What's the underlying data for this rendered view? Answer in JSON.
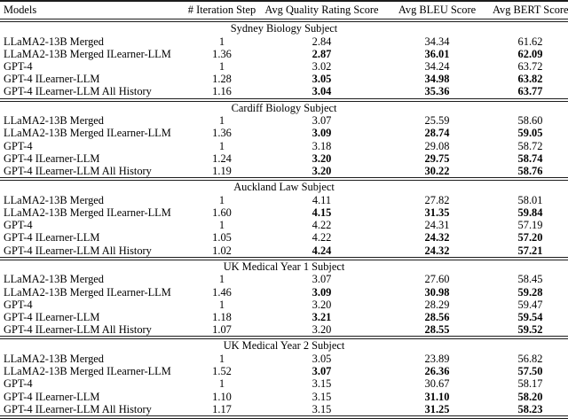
{
  "table": {
    "columns": [
      "Models",
      "# Iteration Step",
      "Avg Quality Rating Score",
      "Avg BLEU Score",
      "Avg BERT Score"
    ],
    "text_color": "#000000",
    "rule_color": "#1c1c1c",
    "sections": [
      {
        "title": "Sydney Biology Subject",
        "rows": [
          {
            "model": "LLaMA2-13B Merged",
            "iteration": "1",
            "quality": "2.84",
            "bleu": "34.34",
            "bert": "61.62",
            "quality_bold": false,
            "bleu_bold": false,
            "bert_bold": false
          },
          {
            "model": "LLaMA2-13B Merged ILearner-LLM",
            "iteration": "1.36",
            "quality": "2.87",
            "bleu": "36.01",
            "bert": "62.09",
            "quality_bold": true,
            "bleu_bold": true,
            "bert_bold": true
          },
          {
            "model": "GPT-4",
            "iteration": "1",
            "quality": "3.02",
            "bleu": "34.24",
            "bert": "63.72",
            "quality_bold": false,
            "bleu_bold": false,
            "bert_bold": false
          },
          {
            "model": "GPT-4 ILearner-LLM",
            "iteration": "1.28",
            "quality": "3.05",
            "bleu": "34.98",
            "bert": "63.82",
            "quality_bold": true,
            "bleu_bold": true,
            "bert_bold": true
          },
          {
            "model": "GPT-4 ILearner-LLM All History",
            "iteration": "1.16",
            "quality": "3.04",
            "bleu": "35.36",
            "bert": "63.77",
            "quality_bold": true,
            "bleu_bold": true,
            "bert_bold": true
          }
        ]
      },
      {
        "title": "Cardiff Biology Subject",
        "rows": [
          {
            "model": "LLaMA2-13B Merged",
            "iteration": "1",
            "quality": "3.07",
            "bleu": "25.59",
            "bert": "58.60",
            "quality_bold": false,
            "bleu_bold": false,
            "bert_bold": false
          },
          {
            "model": "LLaMA2-13B Merged ILearner-LLM",
            "iteration": "1.36",
            "quality": "3.09",
            "bleu": "28.74",
            "bert": "59.05",
            "quality_bold": true,
            "bleu_bold": true,
            "bert_bold": true
          },
          {
            "model": "GPT-4",
            "iteration": "1",
            "quality": "3.18",
            "bleu": "29.08",
            "bert": "58.72",
            "quality_bold": false,
            "bleu_bold": false,
            "bert_bold": false
          },
          {
            "model": "GPT-4 ILearner-LLM",
            "iteration": "1.24",
            "quality": "3.20",
            "bleu": "29.75",
            "bert": "58.74",
            "quality_bold": true,
            "bleu_bold": true,
            "bert_bold": true
          },
          {
            "model": "GPT-4 ILearner-LLM All History",
            "iteration": "1.19",
            "quality": "3.20",
            "bleu": "30.22",
            "bert": "58.76",
            "quality_bold": true,
            "bleu_bold": true,
            "bert_bold": true
          }
        ]
      },
      {
        "title": "Auckland Law Subject",
        "rows": [
          {
            "model": "LLaMA2-13B Merged",
            "iteration": "1",
            "quality": "4.11",
            "bleu": "27.82",
            "bert": "58.01",
            "quality_bold": false,
            "bleu_bold": false,
            "bert_bold": false
          },
          {
            "model": "LLaMA2-13B Merged ILearner-LLM",
            "iteration": "1.60",
            "quality": "4.15",
            "bleu": "31.35",
            "bert": "59.84",
            "quality_bold": true,
            "bleu_bold": true,
            "bert_bold": true
          },
          {
            "model": "GPT-4",
            "iteration": "1",
            "quality": "4.22",
            "bleu": "24.31",
            "bert": "57.19",
            "quality_bold": false,
            "bleu_bold": false,
            "bert_bold": false
          },
          {
            "model": "GPT-4 ILearner-LLM",
            "iteration": "1.05",
            "quality": "4.22",
            "bleu": "24.32",
            "bert": "57.20",
            "quality_bold": false,
            "bleu_bold": true,
            "bert_bold": true
          },
          {
            "model": "GPT-4 ILearner-LLM All History",
            "iteration": "1.02",
            "quality": "4.24",
            "bleu": "24.32",
            "bert": "57.21",
            "quality_bold": true,
            "bleu_bold": true,
            "bert_bold": true
          }
        ]
      },
      {
        "title": "UK Medical Year 1 Subject",
        "rows": [
          {
            "model": "LLaMA2-13B Merged",
            "iteration": "1",
            "quality": "3.07",
            "bleu": "27.60",
            "bert": "58.45",
            "quality_bold": false,
            "bleu_bold": false,
            "bert_bold": false
          },
          {
            "model": "LLaMA2-13B Merged ILearner-LLM",
            "iteration": "1.46",
            "quality": "3.09",
            "bleu": "30.98",
            "bert": "59.28",
            "quality_bold": true,
            "bleu_bold": true,
            "bert_bold": true
          },
          {
            "model": "GPT-4",
            "iteration": "1",
            "quality": "3.20",
            "bleu": "28.29",
            "bert": "59.47",
            "quality_bold": false,
            "bleu_bold": false,
            "bert_bold": false
          },
          {
            "model": "GPT-4 ILearner-LLM",
            "iteration": "1.18",
            "quality": "3.21",
            "bleu": "28.56",
            "bert": "59.54",
            "quality_bold": true,
            "bleu_bold": true,
            "bert_bold": true
          },
          {
            "model": "GPT-4 ILearner-LLM All History",
            "iteration": "1.07",
            "quality": "3.20",
            "bleu": "28.55",
            "bert": "59.52",
            "quality_bold": false,
            "bleu_bold": true,
            "bert_bold": true
          }
        ]
      },
      {
        "title": "UK Medical Year 2 Subject",
        "rows": [
          {
            "model": "LLaMA2-13B Merged",
            "iteration": "1",
            "quality": "3.05",
            "bleu": "23.89",
            "bert": "56.82",
            "quality_bold": false,
            "bleu_bold": false,
            "bert_bold": false
          },
          {
            "model": "LLaMA2-13B Merged ILearner-LLM",
            "iteration": "1.52",
            "quality": "3.07",
            "bleu": "26.36",
            "bert": "57.50",
            "quality_bold": true,
            "bleu_bold": true,
            "bert_bold": true
          },
          {
            "model": "GPT-4",
            "iteration": "1",
            "quality": "3.15",
            "bleu": "30.67",
            "bert": "58.17",
            "quality_bold": false,
            "bleu_bold": false,
            "bert_bold": false
          },
          {
            "model": "GPT-4 ILearner-LLM",
            "iteration": "1.10",
            "quality": "3.15",
            "bleu": "31.10",
            "bert": "58.20",
            "quality_bold": false,
            "bleu_bold": true,
            "bert_bold": true
          },
          {
            "model": "GPT-4 ILearner-LLM All History",
            "iteration": "1.17",
            "quality": "3.15",
            "bleu": "31.25",
            "bert": "58.23",
            "quality_bold": false,
            "bleu_bold": true,
            "bert_bold": true
          }
        ]
      }
    ]
  }
}
